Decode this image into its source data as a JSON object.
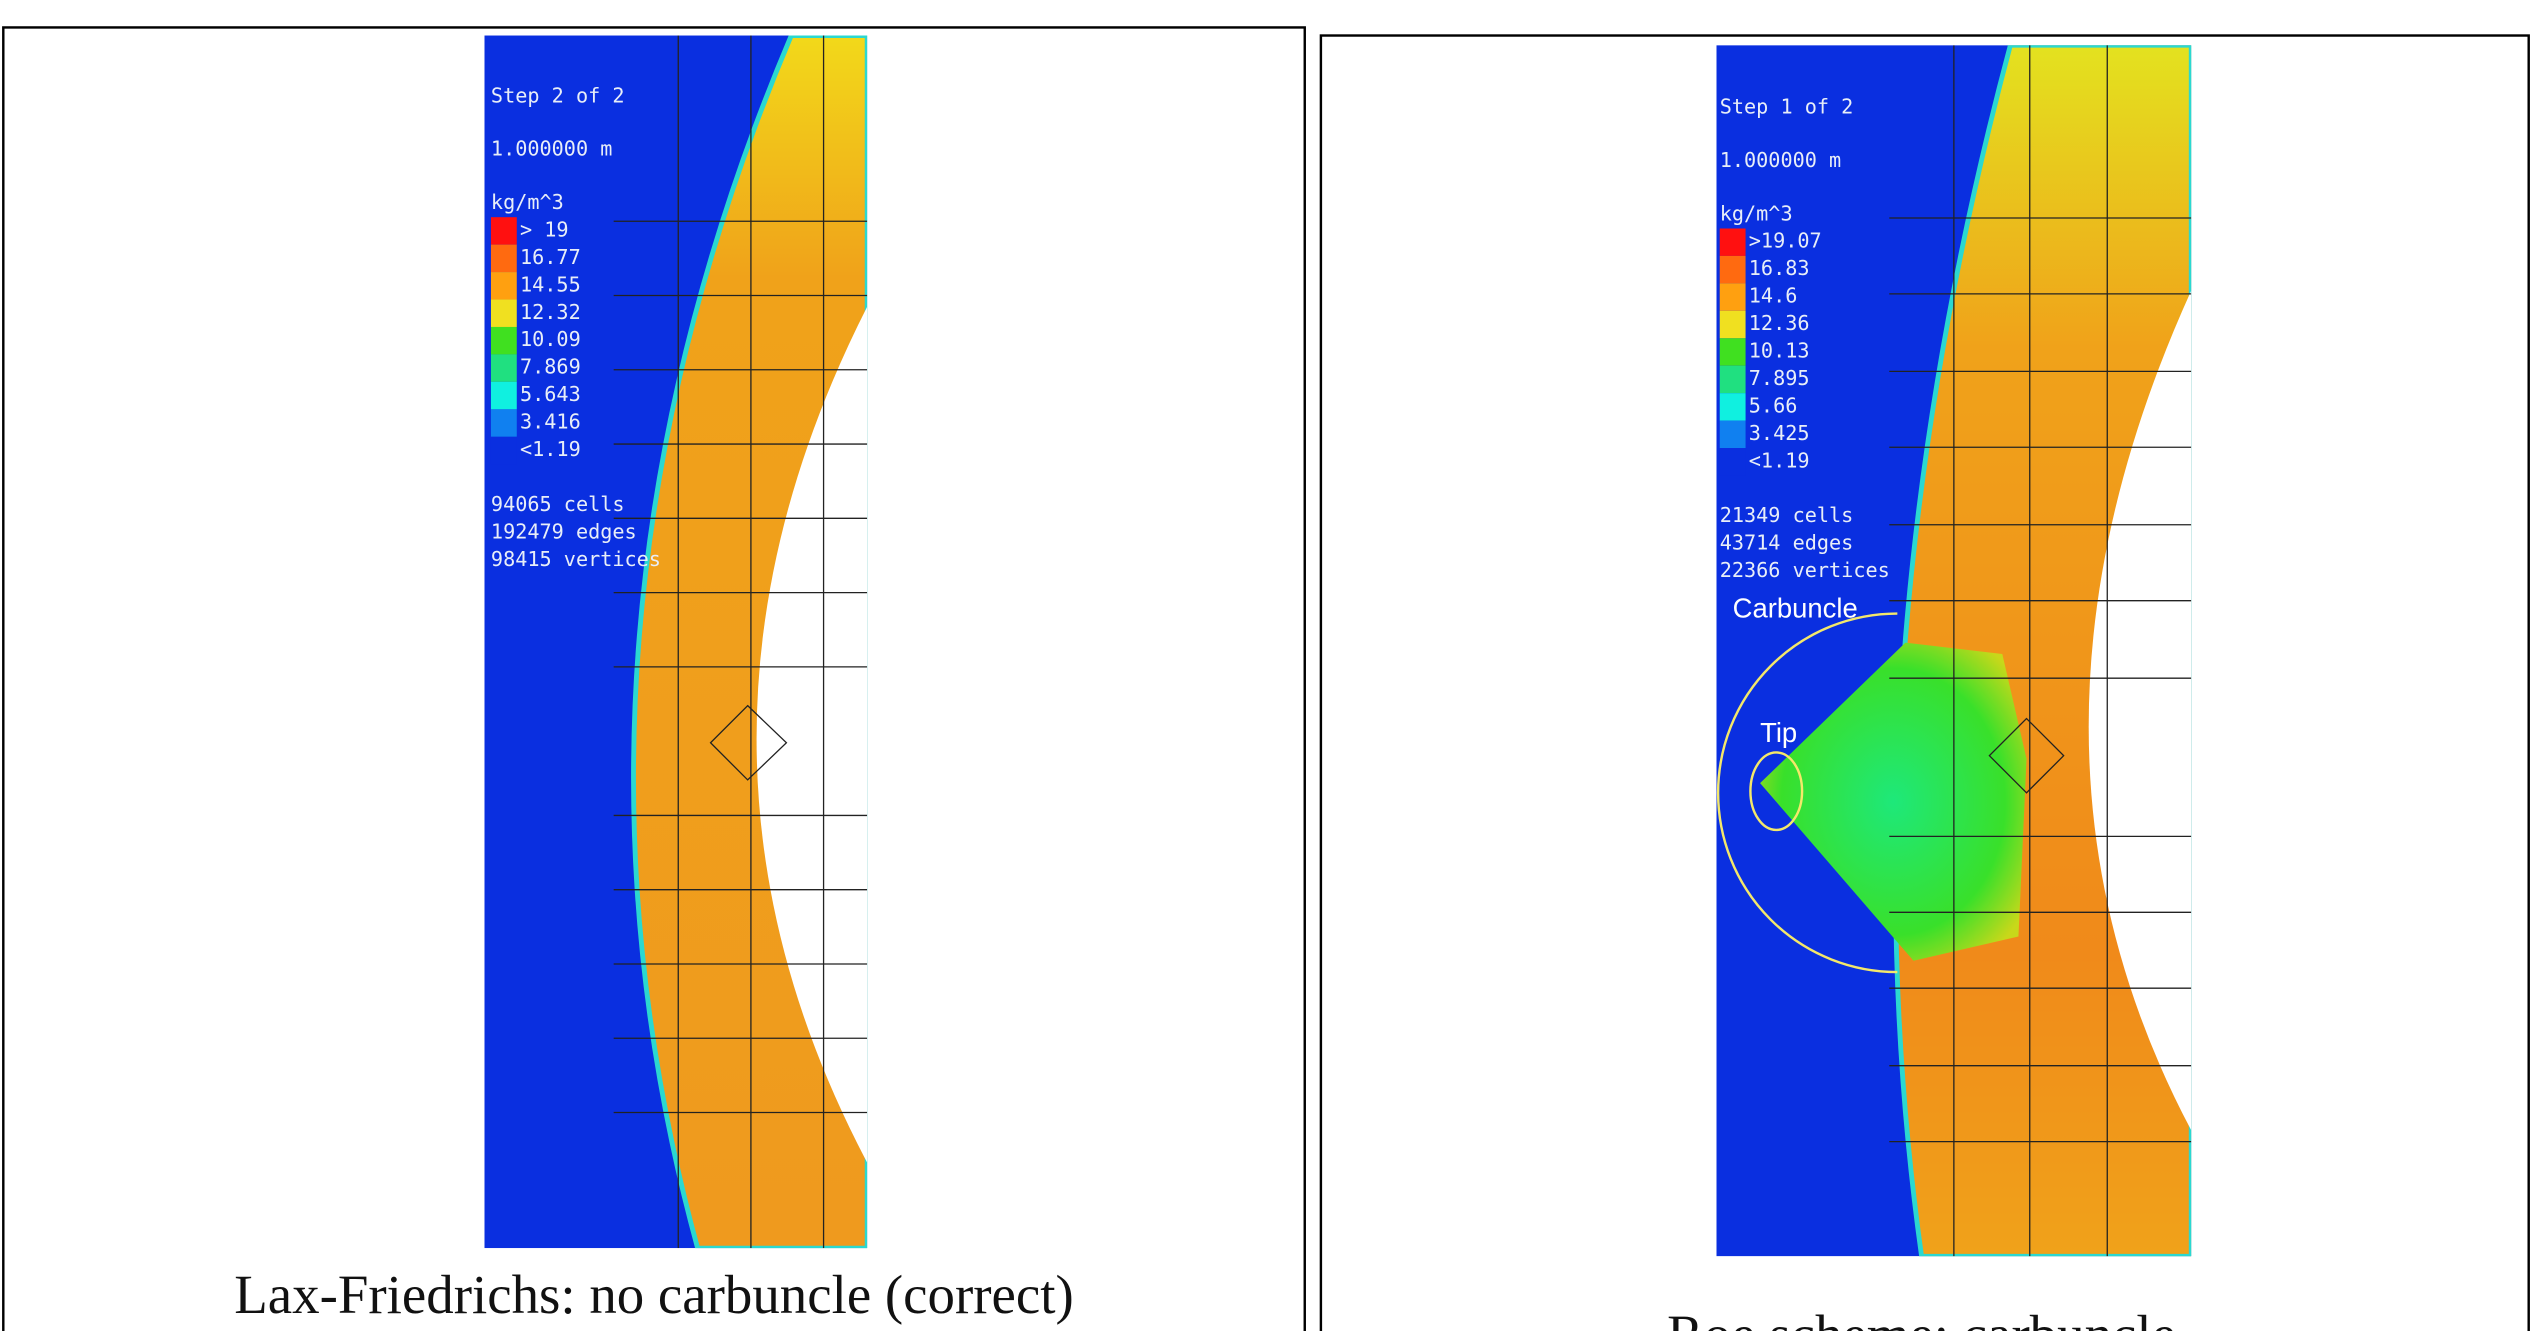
{
  "panels": [
    {
      "info": {
        "step": "Step 2 of 2",
        "length": "1.000000 m",
        "unit": "kg/m^3"
      },
      "legend": [
        "> 19",
        "16.77",
        "14.55",
        "12.32",
        "10.09",
        "7.869",
        "5.643",
        "3.416",
        "<1.19"
      ],
      "stats": [
        "94065 cells",
        "192479 edges",
        "98415 vertices"
      ],
      "caption": "Lax-Friedrichs: no carbuncle (correct)"
    },
    {
      "info": {
        "step": "Step 1 of 2",
        "length": "1.000000 m",
        "unit": "kg/m^3"
      },
      "legend": [
        ">19.07",
        "16.83",
        "14.6",
        "12.36",
        "10.13",
        "7.895",
        "5.66",
        "3.425",
        "<1.19"
      ],
      "stats": [
        "21349 cells",
        "43714 edges",
        "22366 vertices"
      ],
      "annotations": [
        "Carbuncle",
        "Tip"
      ],
      "caption": "Roe scheme: carbuncle"
    }
  ]
}
